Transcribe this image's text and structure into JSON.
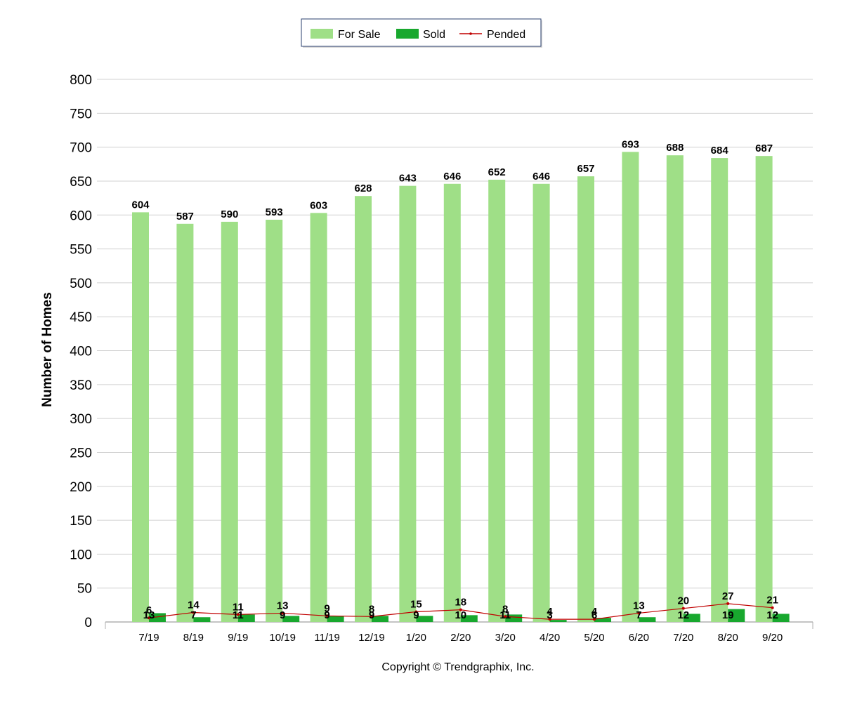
{
  "chart_data": {
    "type": "bar",
    "categories": [
      "7/19",
      "8/19",
      "9/19",
      "10/19",
      "11/19",
      "12/19",
      "1/20",
      "2/20",
      "3/20",
      "4/20",
      "5/20",
      "6/20",
      "7/20",
      "8/20",
      "9/20"
    ],
    "series": [
      {
        "name": "For Sale",
        "type": "bar",
        "color": "#9fdf87",
        "values": [
          604,
          587,
          590,
          593,
          603,
          628,
          643,
          646,
          652,
          646,
          657,
          693,
          688,
          684,
          687
        ]
      },
      {
        "name": "Sold",
        "type": "bar",
        "color": "#18a82e",
        "values": [
          13,
          7,
          11,
          9,
          9,
          9,
          9,
          10,
          11,
          3,
          6,
          7,
          12,
          19,
          12
        ]
      },
      {
        "name": "Pended",
        "type": "line",
        "color": "#c00000",
        "values": [
          6,
          14,
          11,
          13,
          9,
          8,
          15,
          18,
          8,
          4,
          4,
          13,
          20,
          27,
          21
        ]
      }
    ],
    "ylabel": "Number of Homes",
    "xlabel": "",
    "ylim": [
      0,
      800
    ],
    "yticks": [
      0,
      50,
      100,
      150,
      200,
      250,
      300,
      350,
      400,
      450,
      500,
      550,
      600,
      650,
      700,
      750,
      800
    ],
    "grid": true,
    "legend_position": "top-center"
  },
  "copyright": "Copyright © Trendgraphix, Inc."
}
